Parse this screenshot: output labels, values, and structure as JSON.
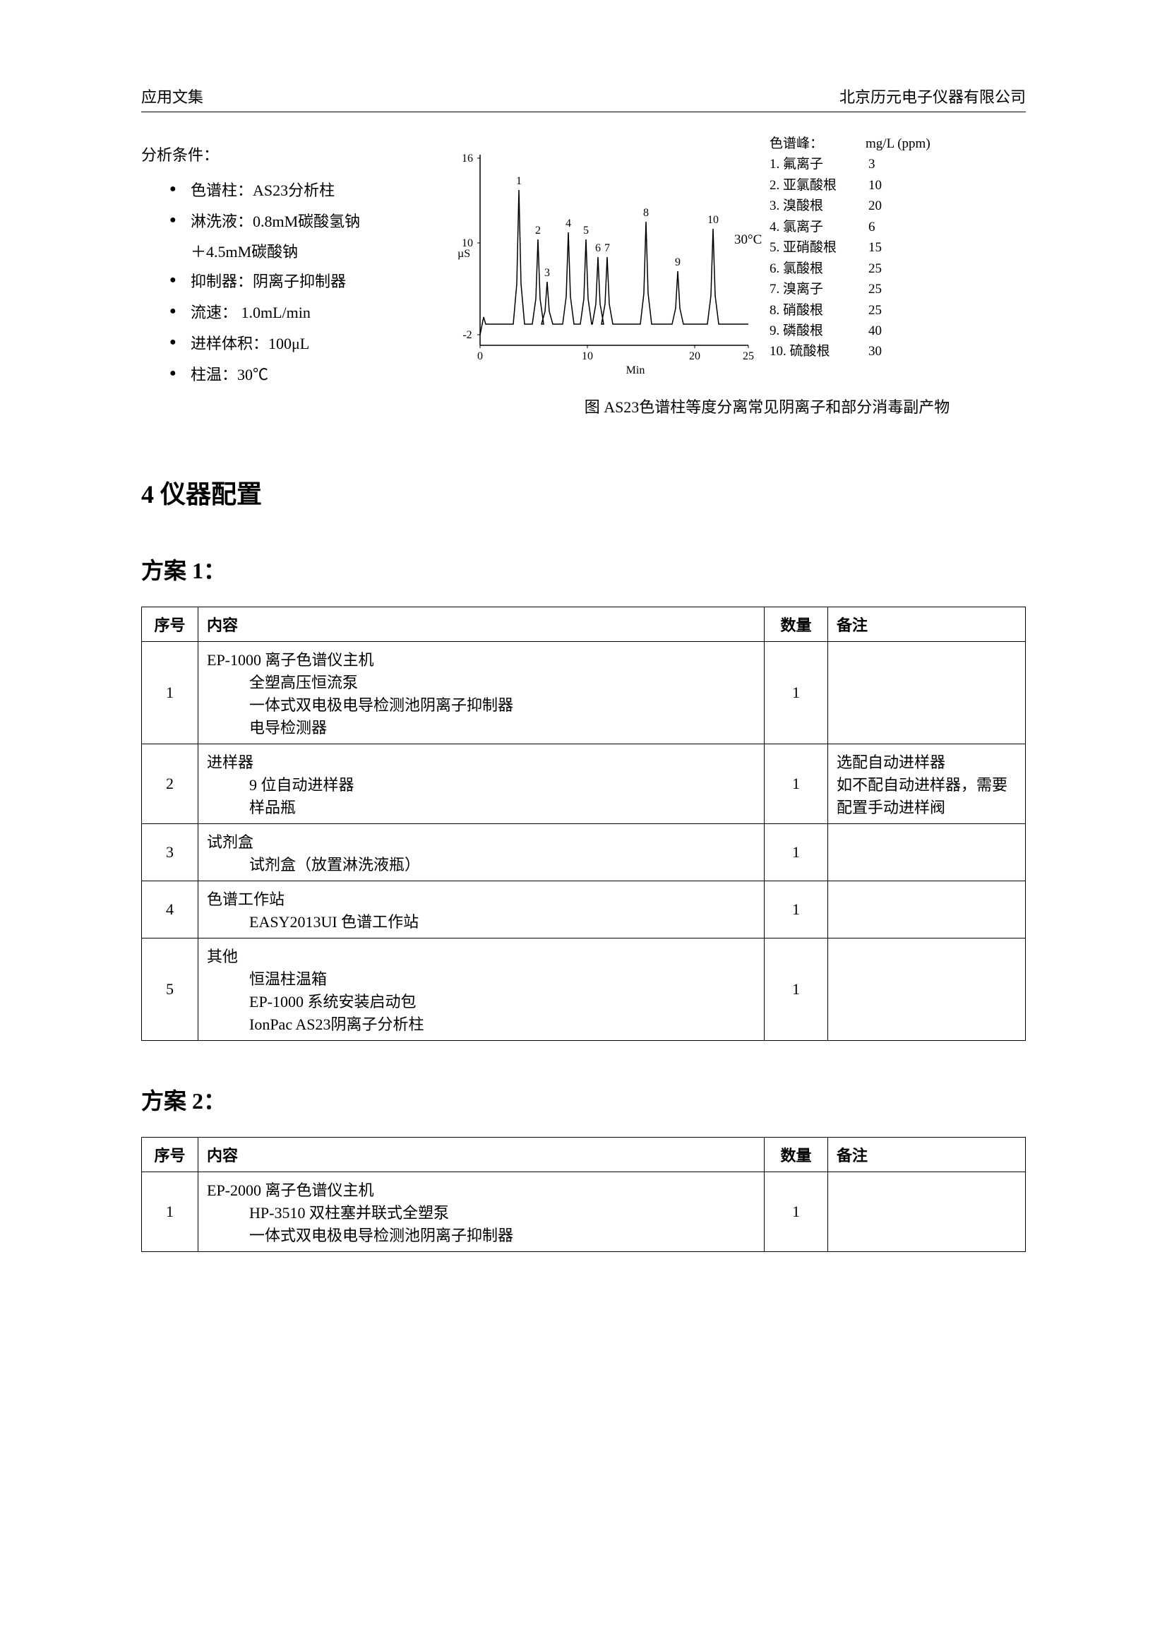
{
  "header": {
    "left": "应用文集",
    "right": "北京历元电子仪器有限公司"
  },
  "conditions": {
    "title": "分析条件：",
    "items": [
      "色谱柱：AS23分析柱",
      "淋洗液：0.8mM碳酸氢钠",
      "＋4.5mM碳酸钠",
      "抑制器：阴离子抑制器",
      "流速：  1.0mL/min",
      "进样体积：100μL",
      "柱温：30℃"
    ]
  },
  "chart": {
    "y_label": "µS",
    "x_label": "Min",
    "y_ticks": [
      "-2",
      "10",
      "16"
    ],
    "x_ticks": [
      "0",
      "10",
      "20",
      "25"
    ],
    "peak_labels": [
      "1",
      "2",
      "3",
      "4",
      "5",
      "6",
      "7",
      "8",
      "9",
      "10"
    ],
    "peak_positions_x": [
      55,
      82,
      95,
      125,
      150,
      167,
      180,
      235,
      280,
      330
    ],
    "peak_heights": [
      190,
      120,
      60,
      130,
      120,
      95,
      95,
      145,
      75,
      135
    ],
    "baseline_y": 260,
    "stroke_color": "#000000",
    "temp_label": "30°C",
    "legend_header_left": "色谱峰：",
    "legend_header_right": "mg/L (ppm)",
    "legend": [
      {
        "n": "1.",
        "name": "氟离子",
        "v": "3"
      },
      {
        "n": "2.",
        "name": "亚氯酸根",
        "v": "10"
      },
      {
        "n": "3.",
        "name": "溴酸根",
        "v": "20"
      },
      {
        "n": "4.",
        "name": "氯离子",
        "v": "6"
      },
      {
        "n": "5.",
        "name": "亚硝酸根",
        "v": "15"
      },
      {
        "n": "6.",
        "name": "氯酸根",
        "v": "25"
      },
      {
        "n": "7.",
        "name": "溴离子",
        "v": "25"
      },
      {
        "n": "8.",
        "name": "硝酸根",
        "v": "25"
      },
      {
        "n": "9.",
        "name": "磷酸根",
        "v": "40"
      },
      {
        "n": "10.",
        "name": "硫酸根",
        "v": "30"
      }
    ],
    "caption": "图  AS23色谱柱等度分离常见阴离子和部分消毒副产物"
  },
  "section4_title": "4   仪器配置",
  "plan1": {
    "title": "方案 1：",
    "columns": [
      "序号",
      "内容",
      "数量",
      "备注"
    ],
    "rows": [
      {
        "num": "1",
        "content_main": "EP-1000 离子色谱仪主机",
        "content_sub": [
          "全塑高压恒流泵",
          "一体式双电极电导检测池阴离子抑制器",
          "电导检测器"
        ],
        "qty": "1",
        "note": ""
      },
      {
        "num": "2",
        "content_main": "进样器",
        "content_sub": [
          "9 位自动进样器",
          "样品瓶"
        ],
        "qty": "1",
        "note": "选配自动进样器\n如不配自动进样器，需要配置手动进样阀"
      },
      {
        "num": "3",
        "content_main": "试剂盒",
        "content_sub": [
          "试剂盒（放置淋洗液瓶）"
        ],
        "qty": "1",
        "note": ""
      },
      {
        "num": "4",
        "content_main": "色谱工作站",
        "content_sub": [
          "EASY2013UI  色谱工作站"
        ],
        "qty": "1",
        "note": ""
      },
      {
        "num": "5",
        "content_main": "其他",
        "content_sub": [
          "恒温柱温箱",
          "EP-1000 系统安装启动包",
          "IonPac AS23阴离子分析柱"
        ],
        "qty": "1",
        "note": ""
      }
    ]
  },
  "plan2": {
    "title": "方案 2：",
    "columns": [
      "序号",
      "内容",
      "数量",
      "备注"
    ],
    "rows": [
      {
        "num": "1",
        "content_main": "EP-2000 离子色谱仪主机",
        "content_sub": [
          "HP-3510 双柱塞并联式全塑泵",
          "一体式双电极电导检测池阴离子抑制器"
        ],
        "qty": "1",
        "note": ""
      }
    ]
  }
}
